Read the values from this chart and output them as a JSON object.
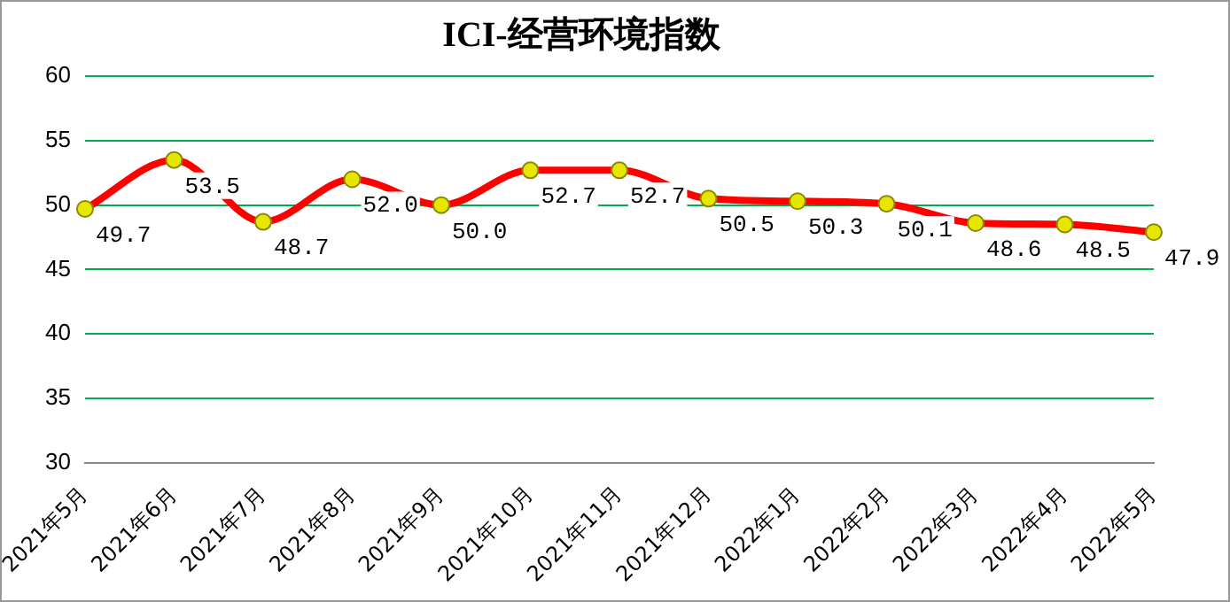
{
  "chart_data": {
    "type": "line",
    "title": "ICI-经营环境指数",
    "categories": [
      "2021年5月",
      "2021年6月",
      "2021年7月",
      "2021年8月",
      "2021年9月",
      "2021年10月",
      "2021年11月",
      "2021年12月",
      "2022年1月",
      "2022年2月",
      "2022年3月",
      "2022年4月",
      "2022年5月"
    ],
    "series": [
      {
        "color": "#ff0000",
        "values": [
          49.7,
          53.5,
          48.7,
          52.0,
          50.0,
          52.7,
          52.7,
          50.5,
          50.3,
          50.1,
          48.6,
          48.5,
          47.9
        ],
        "value_labels": [
          "49.7",
          "53.5",
          "48.7",
          "52.0",
          "50.0",
          "52.7",
          "52.7",
          "50.5",
          "50.3",
          "50.1",
          "48.6",
          "48.5",
          "47.9"
        ]
      }
    ],
    "ylim": [
      30,
      60
    ],
    "yticks": [
      30,
      35,
      40,
      45,
      50,
      55,
      60
    ],
    "grid": "y",
    "legend": false,
    "marker": "circle",
    "line_style": "solid"
  }
}
